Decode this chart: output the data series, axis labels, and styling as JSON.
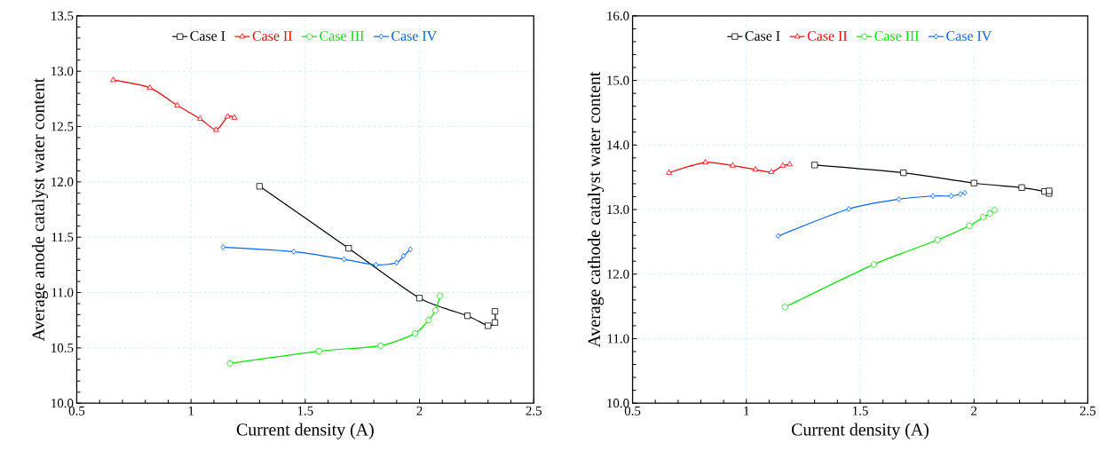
{
  "chart_data": [
    {
      "type": "line",
      "xlabel": "Current density (A)",
      "ylabel": "Average anode catalyst water content",
      "xlim": [
        0.5,
        2.5
      ],
      "ylim": [
        10.0,
        13.5
      ],
      "xticks": [
        0.5,
        1,
        1.5,
        2,
        2.5
      ],
      "yticks": [
        {
          "value": 10.0,
          "label": "10.0"
        },
        {
          "value": 10.5,
          "label": "10.5"
        },
        {
          "value": 11.0,
          "label": "11.0"
        },
        {
          "value": 11.5,
          "label": "11.5"
        },
        {
          "value": 12.0,
          "label": "12.0"
        },
        {
          "value": 12.5,
          "label": "12.5"
        },
        {
          "value": 13.0,
          "label": "13.0"
        },
        {
          "value": 13.5,
          "label": "13.5"
        }
      ],
      "grid": true,
      "legend": "top",
      "series": [
        {
          "name": "Case I",
          "color": "#000000",
          "marker": "square",
          "x": [
            1.3,
            1.69,
            2.0,
            2.21,
            2.3,
            2.33,
            2.33
          ],
          "values": [
            11.96,
            11.4,
            10.95,
            10.79,
            10.7,
            10.73,
            10.83
          ]
        },
        {
          "name": "Case II",
          "color": "#ff0000",
          "marker": "triangle",
          "x": [
            0.66,
            0.82,
            0.94,
            1.04,
            1.11,
            1.16,
            1.19
          ],
          "values": [
            12.92,
            12.85,
            12.69,
            12.57,
            12.47,
            12.59,
            12.58
          ]
        },
        {
          "name": "Case III",
          "color": "#00e600",
          "marker": "circle",
          "x": [
            1.17,
            1.56,
            1.83,
            1.98,
            2.04,
            2.07,
            2.09
          ],
          "values": [
            10.36,
            10.47,
            10.52,
            10.63,
            10.75,
            10.84,
            10.97
          ]
        },
        {
          "name": "Case IV",
          "color": "#0066ff",
          "marker": "diamond",
          "x": [
            1.14,
            1.45,
            1.67,
            1.81,
            1.9,
            1.93,
            1.96
          ],
          "values": [
            11.41,
            11.37,
            11.3,
            11.25,
            11.27,
            11.33,
            11.39
          ]
        }
      ]
    },
    {
      "type": "line",
      "xlabel": "Current density (A)",
      "ylabel": "Average cathode catalyst water content",
      "xlim": [
        0.5,
        2.5
      ],
      "ylim": [
        10.0,
        16.0
      ],
      "xticks": [
        0.5,
        1,
        1.5,
        2,
        2.5
      ],
      "yticks": [
        {
          "value": 10.0,
          "label": "10.0"
        },
        {
          "value": 11.0,
          "label": "11.0"
        },
        {
          "value": 12.0,
          "label": "12.0"
        },
        {
          "value": 13.0,
          "label": "13.0"
        },
        {
          "value": 14.0,
          "label": "14.0"
        },
        {
          "value": 15.0,
          "label": "15.0"
        },
        {
          "value": 16.0,
          "label": "16.0"
        }
      ],
      "grid": true,
      "legend": "top",
      "series": [
        {
          "name": "Case I",
          "color": "#000000",
          "marker": "square",
          "x": [
            1.3,
            1.69,
            2.0,
            2.21,
            2.31,
            2.33,
            2.33
          ],
          "values": [
            13.69,
            13.57,
            13.41,
            13.34,
            13.28,
            13.25,
            13.29
          ]
        },
        {
          "name": "Case II",
          "color": "#ff0000",
          "marker": "triangle",
          "x": [
            0.66,
            0.82,
            0.94,
            1.04,
            1.11,
            1.16,
            1.19
          ],
          "values": [
            13.57,
            13.73,
            13.68,
            13.62,
            13.58,
            13.68,
            13.7
          ]
        },
        {
          "name": "Case III",
          "color": "#00e600",
          "marker": "circle",
          "x": [
            1.17,
            1.56,
            1.84,
            1.98,
            2.04,
            2.07,
            2.09
          ],
          "values": [
            11.49,
            12.15,
            12.53,
            12.75,
            12.88,
            12.94,
            12.99
          ]
        },
        {
          "name": "Case IV",
          "color": "#0066ff",
          "marker": "diamond",
          "x": [
            1.14,
            1.45,
            1.67,
            1.82,
            1.9,
            1.94,
            1.96
          ],
          "values": [
            12.59,
            13.01,
            13.16,
            13.21,
            13.21,
            13.24,
            13.26
          ]
        }
      ]
    }
  ]
}
